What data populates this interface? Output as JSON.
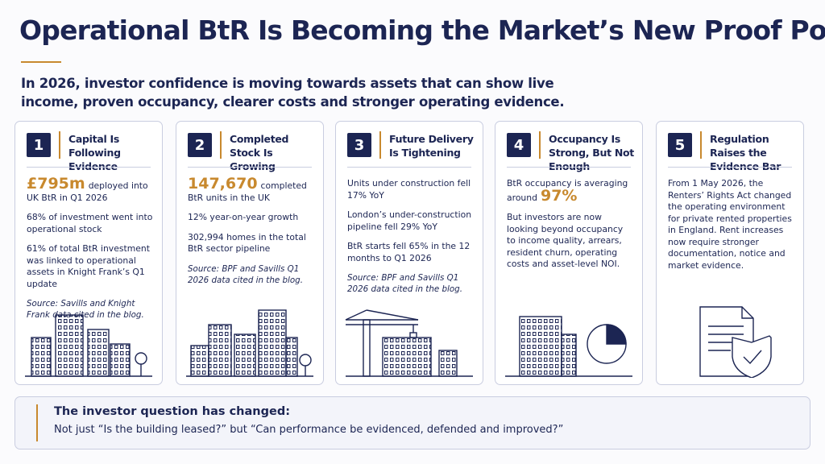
{
  "header": {
    "title": "Operational BtR Is Becoming the Market’s New Proof Point",
    "subtitle": "In 2026, investor confidence is moving towards assets that can show live income, proven occupancy, clearer costs and stronger operating evidence."
  },
  "cards": [
    {
      "number": 1,
      "title": "Capital Is Following Evidence",
      "paragraphs": [
        [
          {
            "text": "£795m",
            "emphasis": true
          },
          {
            "text": "deployed into UK BtR in Q1 2026"
          }
        ],
        [
          {
            "text": "68% of investment went into operational stock"
          }
        ],
        [
          {
            "text": "61% of total BtR investment was linked to operational assets in Knight Frank’s Q1 update"
          }
        ]
      ],
      "source": "Source: Savills and Knight Frank data cited in the blog."
    },
    {
      "number": 2,
      "title": "Completed Stock Is Growing",
      "paragraphs": [
        [
          {
            "text": "147,670",
            "emphasis": true
          },
          {
            "text": "completed BtR units in the UK"
          }
        ],
        [
          {
            "text": "12% year-on-year growth"
          }
        ],
        [
          {
            "text": "302,994 homes in the total BtR sector pipeline"
          }
        ]
      ],
      "source": "Source: BPF and Savills Q1 2026 data cited in the blog."
    },
    {
      "number": 3,
      "title": "Future Delivery Is Tightening",
      "paragraphs": [
        [
          {
            "text": "Units under construction fell 17% YoY"
          }
        ],
        [
          {
            "text": "London’s under-construction pipeline fell 29% YoY"
          }
        ],
        [
          {
            "text": "BtR starts fell 65% in the 12 months to Q1 2026"
          }
        ]
      ],
      "source": "Source: BPF and Savills Q1 2026 data cited in the blog."
    },
    {
      "number": 4,
      "title": "Occupancy Is Strong, But Not Enough",
      "paragraphs": [
        [
          {
            "text": "BtR occupancy is averaging around"
          },
          {
            "text": "97%",
            "emphasis": true
          }
        ],
        [
          {
            "text": "But investors are now looking beyond occupancy to income quality, arrears, resident churn, operating costs and asset-level NOI."
          }
        ]
      ]
    },
    {
      "number": 5,
      "title": "Regulation Raises the Evidence Bar",
      "paragraphs": [
        [
          {
            "text": "From 1 May 2026, the Renters’ Rights Act changed the operating environment for private rented properties in England. Rent increases now require stronger documentation, notice and market evidence."
          }
        ]
      ]
    }
  ],
  "footer": {
    "title": "The investor question has changed:",
    "text": "Not just “Is the building leased?” but “Can performance be evidenced, defended and improved?”"
  }
}
